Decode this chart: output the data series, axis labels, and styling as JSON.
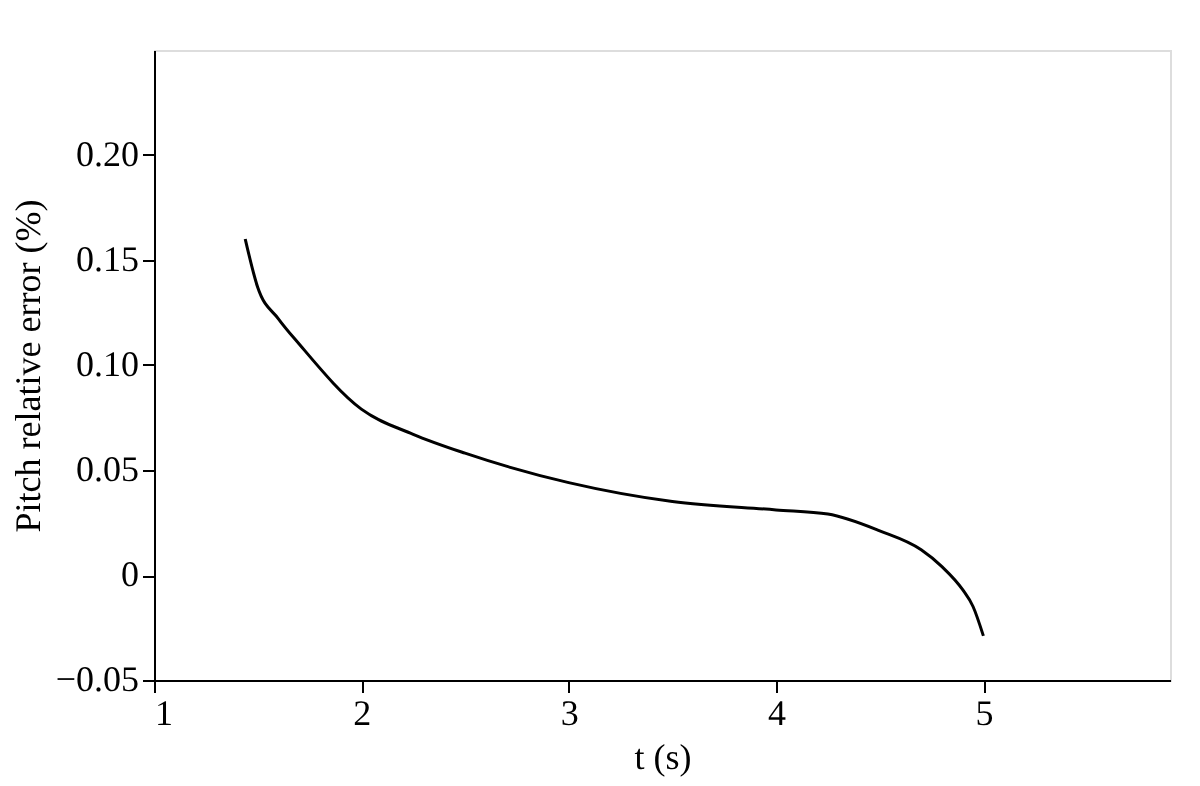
{
  "chart_data": {
    "type": "line",
    "xlabel": "t (s)",
    "ylabel": "Pitch relative error (%)",
    "xlim": [
      1,
      5.9
    ],
    "xticks": [
      1,
      2,
      3,
      4,
      5
    ],
    "ylim": [
      -0.05,
      0.25
    ],
    "yticks": [
      -0.05,
      0,
      0.05,
      {
        "value": 0.1,
        "label": "0.10"
      },
      0.15,
      {
        "value": 0.2,
        "label": "0.20"
      }
    ],
    "grid": false,
    "legend": false,
    "marker": "none",
    "line_style": "solid",
    "series": [
      {
        "color": "#000000",
        "x": [
          1.44,
          1.5,
          1.6,
          1.7,
          2,
          2.25,
          2.5,
          3,
          3.5,
          4,
          4.25,
          4.5,
          4.7,
          4.8,
          4.9,
          4.95,
          5
        ],
        "values": [
          0.16,
          0.137,
          0.122,
          0.11,
          0.079,
          0.067,
          0.058,
          0.044,
          0.035,
          0.031,
          0.029,
          0.021,
          0.012,
          0.004,
          -0.007,
          -0.015,
          -0.029
        ]
      }
    ]
  }
}
